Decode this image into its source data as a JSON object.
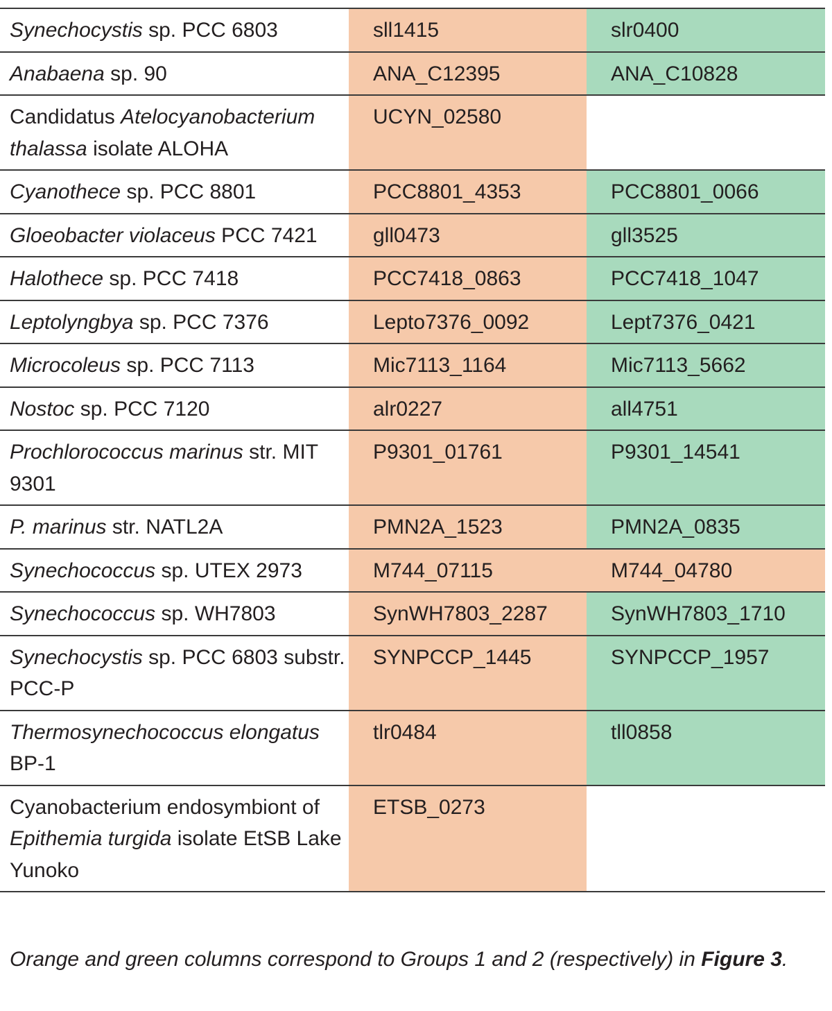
{
  "rows": [
    {
      "org_i": "Synechocystis",
      "org_r": " sp. PCC 6803",
      "g1": "sll1415",
      "g2": "slr0400",
      "g1_color": "orange",
      "g2_color": "green"
    },
    {
      "org_i": "Anabaena",
      "org_r": " sp. 90",
      "g1": "ANA_C12395",
      "g2": "ANA_C10828",
      "g1_color": "orange",
      "g2_color": "green"
    },
    {
      "org_pre": "Candidatus ",
      "org_i": "Atelocyanobacterium thalassa",
      "org_r": " isolate ALOHA",
      "g1": "UCYN_02580",
      "g2": "",
      "g1_color": "orange",
      "g2_color": "blank"
    },
    {
      "org_i": "Cyanothece",
      "org_r": " sp. PCC 8801",
      "g1": "PCC8801_4353",
      "g2": "PCC8801_0066",
      "g1_color": "orange",
      "g2_color": "green"
    },
    {
      "org_i": "Gloeobacter violaceus",
      "org_r": " PCC 7421",
      "g1": "gll0473",
      "g2": "gll3525",
      "g1_color": "orange",
      "g2_color": "green"
    },
    {
      "org_i": "Halothece",
      "org_r": " sp. PCC 7418",
      "g1": "PCC7418_0863",
      "g2": "PCC7418_1047",
      "g1_color": "orange",
      "g2_color": "green"
    },
    {
      "org_i": "Leptolyngbya",
      "org_r": " sp. PCC 7376",
      "g1": "Lepto7376_0092",
      "g2": "Lept7376_0421",
      "g1_color": "orange",
      "g2_color": "green"
    },
    {
      "org_i": "Microcoleus",
      "org_r": " sp. PCC 7113",
      "g1": "Mic7113_1164",
      "g2": "Mic7113_5662",
      "g1_color": "orange",
      "g2_color": "green"
    },
    {
      "org_i": "Nostoc",
      "org_r": " sp. PCC 7120",
      "g1": "alr0227",
      "g2": "all4751",
      "g1_color": "orange",
      "g2_color": "green"
    },
    {
      "org_i": "Prochlorococcus marinus",
      "org_r": " str. MIT 9301",
      "g1": "P9301_01761",
      "g2": "P9301_14541",
      "g1_color": "orange",
      "g2_color": "green"
    },
    {
      "org_i": "P. marinus",
      "org_r": " str. NATL2A",
      "g1": "PMN2A_1523",
      "g2": "PMN2A_0835",
      "g1_color": "orange",
      "g2_color": "green"
    },
    {
      "org_i": "Synechococcus",
      "org_r": " sp. UTEX 2973",
      "g1": "M744_07115",
      "g2": "M744_04780",
      "g1_color": "orange",
      "g2_color": "orange"
    },
    {
      "org_i": "Synechococcus",
      "org_r": " sp. WH7803",
      "g1": "SynWH7803_2287",
      "g2": "SynWH7803_1710",
      "g1_color": "orange",
      "g2_color": "green"
    },
    {
      "org_i": "Synechocystis",
      "org_r": " sp. PCC 6803 substr. PCC-P",
      "g1": "SYNPCCP_1445",
      "g2": "SYNPCCP_1957",
      "g1_color": "orange",
      "g2_color": "green"
    },
    {
      "org_i": "Thermosynechococcus elongatus",
      "org_r": " BP-1",
      "g1": "tlr0484",
      "g2": "tll0858",
      "g1_color": "orange",
      "g2_color": "green"
    },
    {
      "org_pre": "Cyanobacterium endosymbiont of ",
      "org_i": "Epithemia turgida",
      "org_r": " isolate EtSB Lake Yunoko",
      "g1": "ETSB_0273",
      "g2": "",
      "g1_color": "orange",
      "g2_color": "blank"
    }
  ],
  "footnote": {
    "text": "Orange and green columns correspond to Groups 1 and 2 (respectively) in ",
    "ref": "Figure 3",
    "end": "."
  },
  "colors": {
    "orange": "#f6c9aa",
    "green": "#a8dabd",
    "rule": "#3a3a3a"
  }
}
